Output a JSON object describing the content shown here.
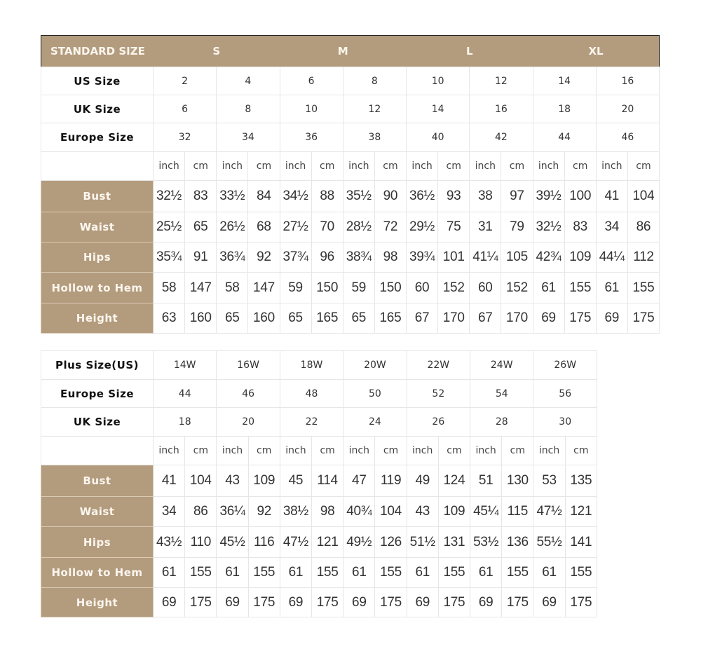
{
  "standard": {
    "title": "STANDARD SIZE",
    "groups": [
      "S",
      "M",
      "L",
      "XL"
    ],
    "size_rows": [
      {
        "label": "US Size",
        "values": [
          "2",
          "4",
          "6",
          "8",
          "10",
          "12",
          "14",
          "16"
        ]
      },
      {
        "label": "UK Size",
        "values": [
          "6",
          "8",
          "10",
          "12",
          "14",
          "16",
          "18",
          "20"
        ]
      },
      {
        "label": "Europe Size",
        "values": [
          "32",
          "34",
          "36",
          "38",
          "40",
          "42",
          "44",
          "46"
        ]
      }
    ],
    "units": [
      "inch",
      "cm"
    ],
    "measure_rows": [
      {
        "label": "Bust",
        "values": [
          "32½",
          "83",
          "33½",
          "84",
          "34½",
          "88",
          "35½",
          "90",
          "36½",
          "93",
          "38",
          "97",
          "39½",
          "100",
          "41",
          "104"
        ]
      },
      {
        "label": "Waist",
        "values": [
          "25½",
          "65",
          "26½",
          "68",
          "27½",
          "70",
          "28½",
          "72",
          "29½",
          "75",
          "31",
          "79",
          "32½",
          "83",
          "34",
          "86"
        ]
      },
      {
        "label": "Hips",
        "values": [
          "35¾",
          "91",
          "36¾",
          "92",
          "37¾",
          "96",
          "38¾",
          "98",
          "39¾",
          "101",
          "41¼",
          "105",
          "42¾",
          "109",
          "44¼",
          "112"
        ]
      },
      {
        "label": "Hollow to Hem",
        "values": [
          "58",
          "147",
          "58",
          "147",
          "59",
          "150",
          "59",
          "150",
          "60",
          "152",
          "60",
          "152",
          "61",
          "155",
          "61",
          "155"
        ]
      },
      {
        "label": "Height",
        "values": [
          "63",
          "160",
          "65",
          "160",
          "65",
          "165",
          "65",
          "165",
          "67",
          "170",
          "67",
          "170",
          "69",
          "175",
          "69",
          "175"
        ]
      }
    ]
  },
  "plus": {
    "size_rows": [
      {
        "label": "Plus Size(US)",
        "values": [
          "14W",
          "16W",
          "18W",
          "20W",
          "22W",
          "24W",
          "26W"
        ]
      },
      {
        "label": "Europe Size",
        "values": [
          "44",
          "46",
          "48",
          "50",
          "52",
          "54",
          "56"
        ]
      },
      {
        "label": "UK Size",
        "values": [
          "18",
          "20",
          "22",
          "24",
          "26",
          "28",
          "30"
        ]
      }
    ],
    "units": [
      "inch",
      "cm"
    ],
    "measure_rows": [
      {
        "label": "Bust",
        "values": [
          "41",
          "104",
          "43",
          "109",
          "45",
          "114",
          "47",
          "119",
          "49",
          "124",
          "51",
          "130",
          "53",
          "135"
        ]
      },
      {
        "label": "Waist",
        "values": [
          "34",
          "86",
          "36¼",
          "92",
          "38½",
          "98",
          "40¾",
          "104",
          "43",
          "109",
          "45¼",
          "115",
          "47½",
          "121"
        ]
      },
      {
        "label": "Hips",
        "values": [
          "43½",
          "110",
          "45½",
          "116",
          "47½",
          "121",
          "49½",
          "126",
          "51½",
          "131",
          "53½",
          "136",
          "55½",
          "141"
        ]
      },
      {
        "label": "Hollow to Hem",
        "values": [
          "61",
          "155",
          "61",
          "155",
          "61",
          "155",
          "61",
          "155",
          "61",
          "155",
          "61",
          "155",
          "61",
          "155"
        ]
      },
      {
        "label": "Height",
        "values": [
          "69",
          "175",
          "69",
          "175",
          "69",
          "175",
          "69",
          "175",
          "69",
          "175",
          "69",
          "175",
          "69",
          "175"
        ]
      }
    ]
  },
  "colors": {
    "accent": "#b39b7d",
    "accent_text": "#fbf6ee"
  }
}
